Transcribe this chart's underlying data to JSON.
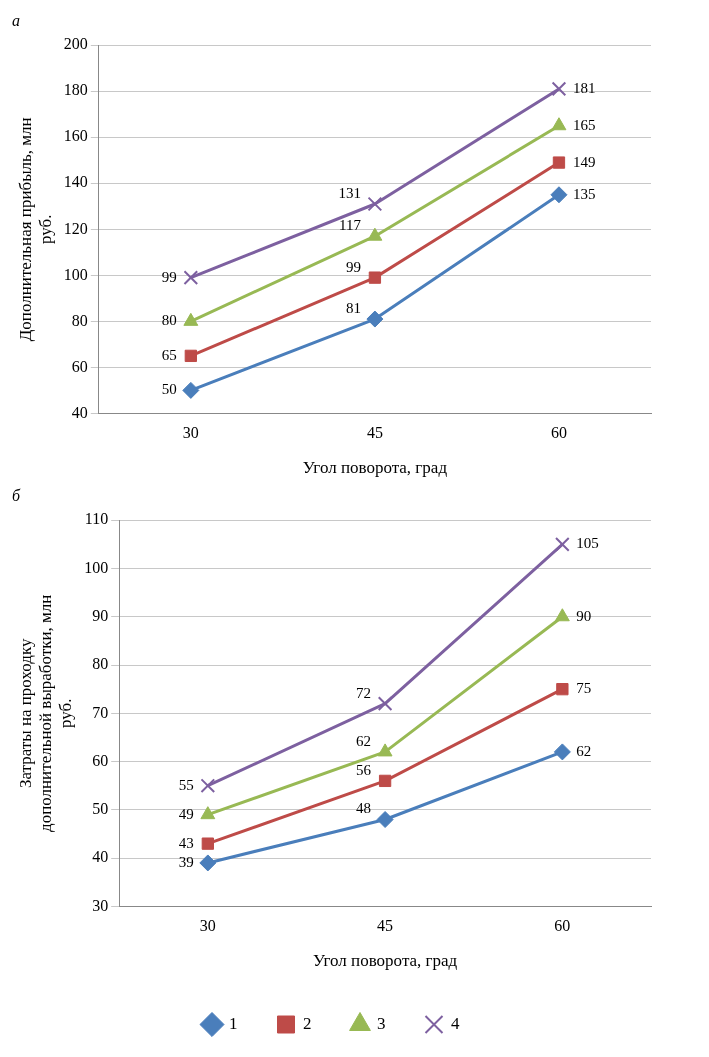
{
  "chart_data": [
    {
      "type": "line",
      "title": "а",
      "xlabel": "Угол поворота, град",
      "ylabel": "Дополнительная прибыль, млн руб.",
      "categories": [
        "30",
        "45",
        "60"
      ],
      "ylim": [
        40,
        200
      ],
      "yticks": [
        40,
        60,
        80,
        100,
        120,
        140,
        160,
        180,
        200
      ],
      "grid": "y",
      "data_labels": true,
      "legend": false,
      "series": [
        {
          "color": "#4a7ebb",
          "marker": "diamond",
          "values": [
            50,
            81,
            135
          ]
        },
        {
          "color": "#be4b48",
          "marker": "square",
          "values": [
            65,
            99,
            149
          ]
        },
        {
          "color": "#98b954",
          "marker": "triangle",
          "values": [
            80,
            117,
            165
          ]
        },
        {
          "color": "#7d60a0",
          "marker": "cross",
          "values": [
            99,
            131,
            181
          ]
        }
      ]
    },
    {
      "type": "line",
      "title": "б",
      "xlabel": "Угол поворота, град",
      "ylabel": "Затраты на проходку дополнительной выработки, млн руб.",
      "categories": [
        "30",
        "45",
        "60"
      ],
      "ylim": [
        30,
        110
      ],
      "yticks": [
        30,
        40,
        50,
        60,
        70,
        80,
        90,
        100,
        110
      ],
      "grid": "y",
      "data_labels": true,
      "legend": "bottom",
      "series": [
        {
          "name": "1",
          "color": "#4a7ebb",
          "marker": "diamond",
          "values": [
            39,
            48,
            62
          ]
        },
        {
          "name": "2",
          "color": "#be4b48",
          "marker": "square",
          "values": [
            43,
            56,
            75
          ]
        },
        {
          "name": "3",
          "color": "#98b954",
          "marker": "triangle",
          "values": [
            49,
            62,
            90
          ]
        },
        {
          "name": "4",
          "color": "#7d60a0",
          "marker": "cross",
          "values": [
            55,
            72,
            105
          ]
        }
      ]
    }
  ]
}
